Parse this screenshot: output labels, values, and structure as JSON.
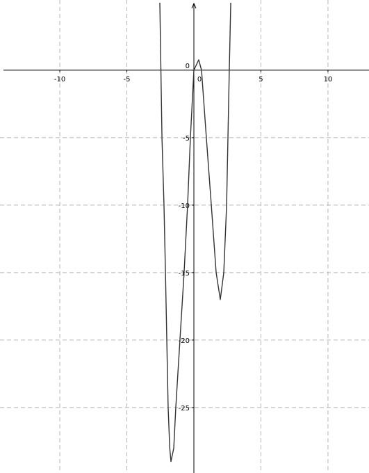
{
  "chart_data": {
    "type": "line",
    "x": [
      -2.54,
      -2.38,
      -2.23,
      -2.12,
      -2.02,
      -1.92,
      -1.8,
      -1.71,
      -1.5,
      -1.35,
      -1.04,
      -0.73,
      -0.47,
      -0.26,
      0,
      0.36,
      0.57,
      0.93,
      1.3,
      1.66,
      1.97,
      2.23,
      2.44,
      2.54,
      2.64,
      2.75
    ],
    "series": [
      {
        "color": "#333333",
        "values": [
          5,
          -5,
          -10,
          -15,
          -20,
          -25,
          -28,
          -29,
          -28,
          -25,
          -20,
          -15,
          -10,
          -5,
          0,
          0.77,
          0,
          -5,
          -10,
          -15,
          -17,
          -15,
          -10,
          -5,
          0,
          5
        ]
      }
    ],
    "xlim": [
      -14.46,
      13.06
    ],
    "ylim": [
      5.2,
      -29.85
    ],
    "xticks": [
      -10,
      -5,
      0,
      5,
      10
    ],
    "yticks": [
      -25,
      -20,
      -15,
      -10,
      -5,
      0
    ],
    "grid": true
  }
}
